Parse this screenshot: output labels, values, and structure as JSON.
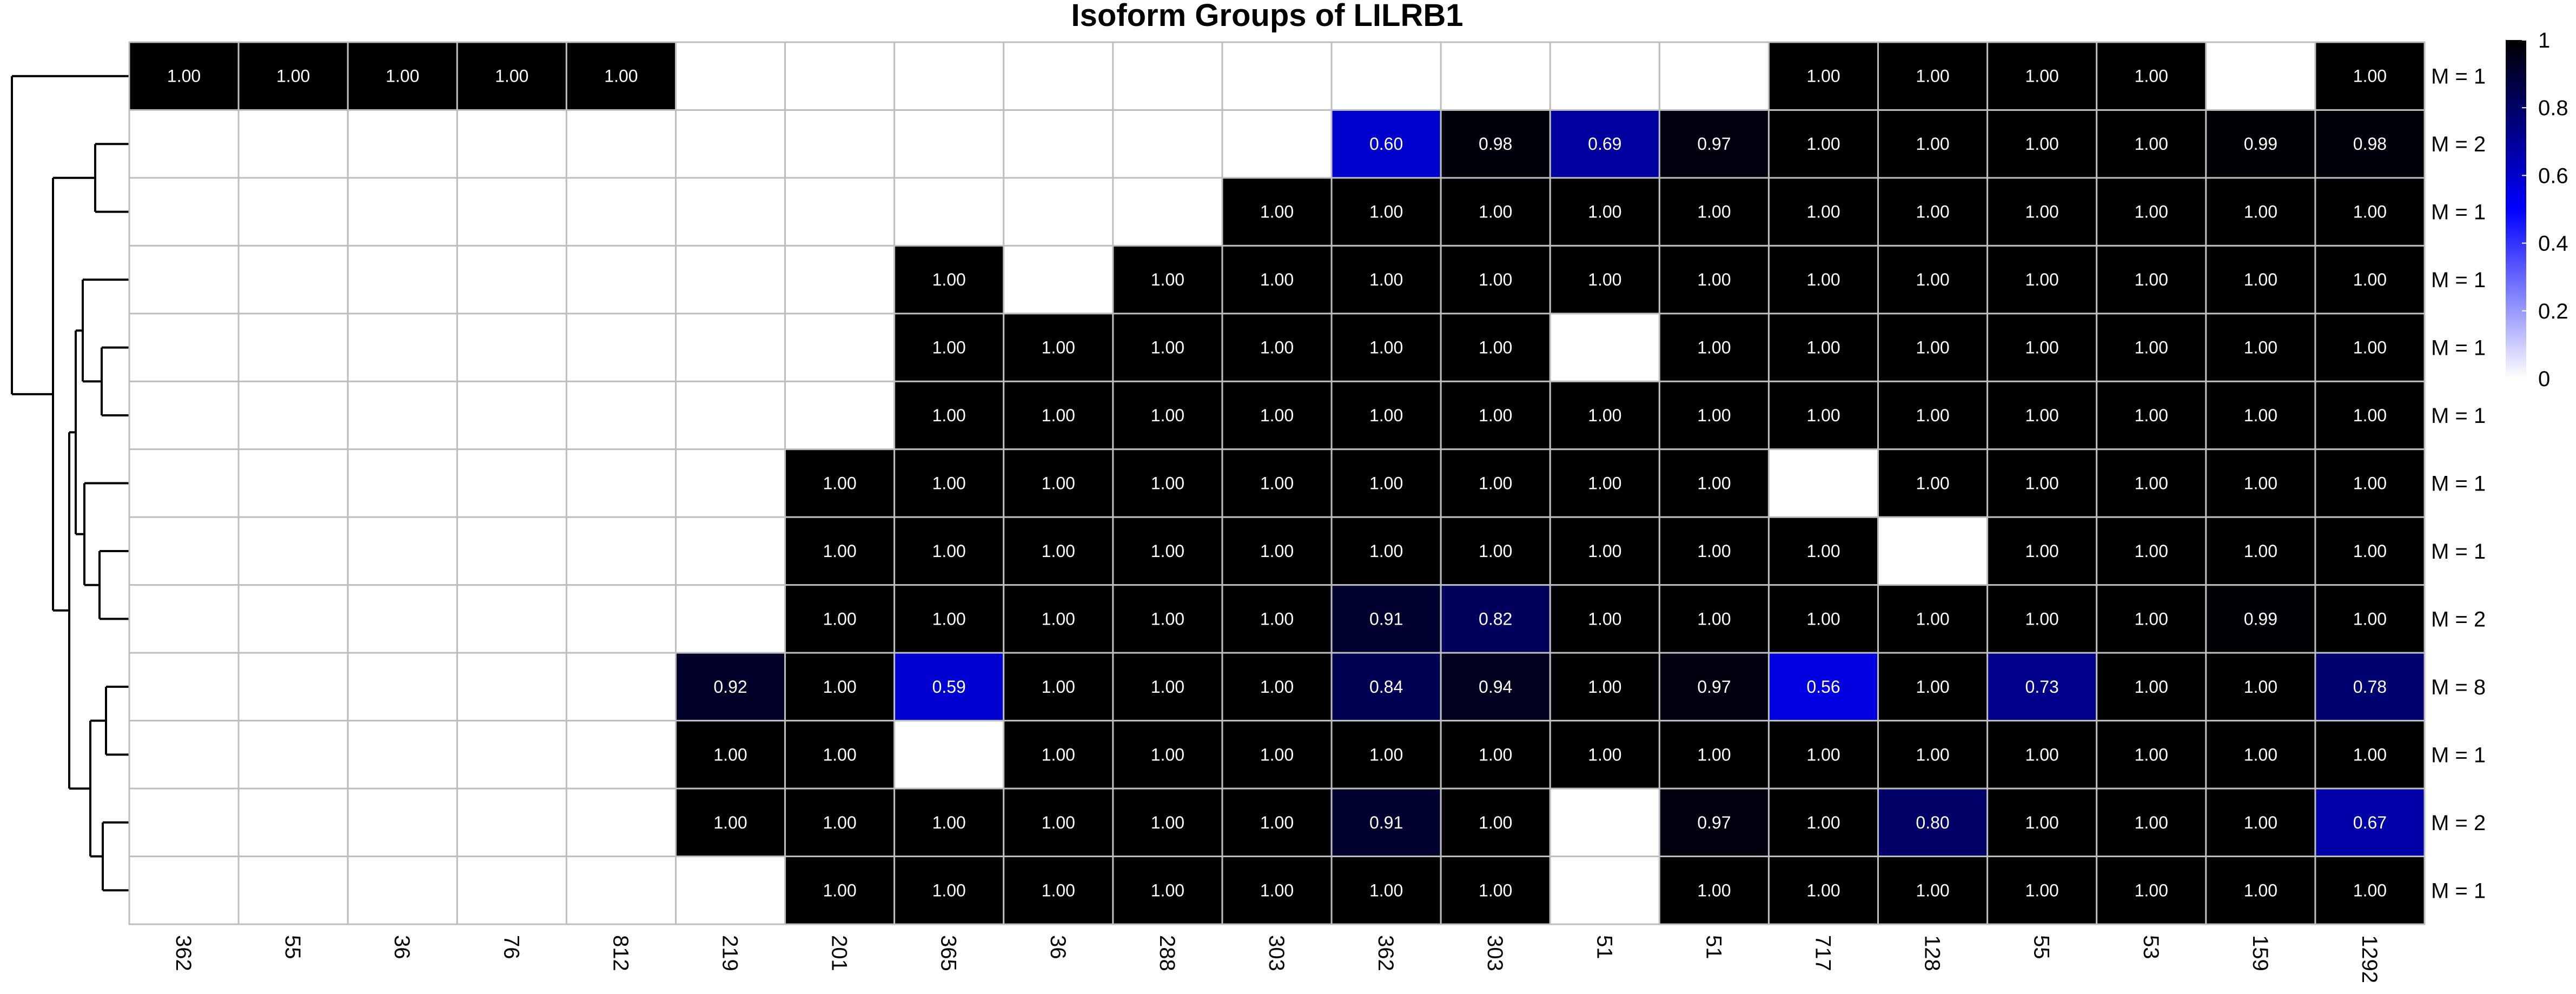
{
  "chart_data": {
    "type": "heatmap",
    "title": "Isoform Groups of LILRB1",
    "columns": [
      "362",
      "55",
      "36",
      "76",
      "812",
      "219",
      "201",
      "365",
      "36",
      "288",
      "303",
      "362",
      "303",
      "51",
      "51",
      "717",
      "128",
      "55",
      "53",
      "159",
      "1292"
    ],
    "row_labels": [
      "M = 1",
      "M = 2",
      "M = 1",
      "M = 1",
      "M = 1",
      "M = 1",
      "M = 1",
      "M = 1",
      "M = 2",
      "M = 8",
      "M = 1",
      "M = 2",
      "M = 1"
    ],
    "values": [
      [
        1.0,
        1.0,
        1.0,
        1.0,
        1.0,
        null,
        null,
        null,
        null,
        null,
        null,
        null,
        null,
        null,
        null,
        1.0,
        1.0,
        1.0,
        1.0,
        null,
        1.0
      ],
      [
        null,
        null,
        null,
        null,
        null,
        null,
        null,
        null,
        null,
        null,
        null,
        0.6,
        0.98,
        0.69,
        0.97,
        1.0,
        1.0,
        1.0,
        1.0,
        0.99,
        0.98
      ],
      [
        null,
        null,
        null,
        null,
        null,
        null,
        null,
        null,
        null,
        null,
        1.0,
        1.0,
        1.0,
        1.0,
        1.0,
        1.0,
        1.0,
        1.0,
        1.0,
        1.0,
        1.0
      ],
      [
        null,
        null,
        null,
        null,
        null,
        null,
        null,
        1.0,
        null,
        1.0,
        1.0,
        1.0,
        1.0,
        1.0,
        1.0,
        1.0,
        1.0,
        1.0,
        1.0,
        1.0,
        1.0
      ],
      [
        null,
        null,
        null,
        null,
        null,
        null,
        null,
        1.0,
        1.0,
        1.0,
        1.0,
        1.0,
        1.0,
        null,
        1.0,
        1.0,
        1.0,
        1.0,
        1.0,
        1.0,
        1.0
      ],
      [
        null,
        null,
        null,
        null,
        null,
        null,
        null,
        1.0,
        1.0,
        1.0,
        1.0,
        1.0,
        1.0,
        1.0,
        1.0,
        1.0,
        1.0,
        1.0,
        1.0,
        1.0,
        1.0
      ],
      [
        null,
        null,
        null,
        null,
        null,
        null,
        1.0,
        1.0,
        1.0,
        1.0,
        1.0,
        1.0,
        1.0,
        1.0,
        1.0,
        null,
        1.0,
        1.0,
        1.0,
        1.0,
        1.0
      ],
      [
        null,
        null,
        null,
        null,
        null,
        null,
        1.0,
        1.0,
        1.0,
        1.0,
        1.0,
        1.0,
        1.0,
        1.0,
        1.0,
        1.0,
        null,
        1.0,
        1.0,
        1.0,
        1.0
      ],
      [
        null,
        null,
        null,
        null,
        null,
        null,
        1.0,
        1.0,
        1.0,
        1.0,
        1.0,
        0.91,
        0.82,
        1.0,
        1.0,
        1.0,
        1.0,
        1.0,
        1.0,
        0.99,
        1.0
      ],
      [
        null,
        null,
        null,
        null,
        null,
        0.92,
        1.0,
        0.59,
        1.0,
        1.0,
        1.0,
        0.84,
        0.94,
        1.0,
        0.97,
        0.56,
        1.0,
        0.73,
        1.0,
        1.0,
        0.78
      ],
      [
        null,
        null,
        null,
        null,
        null,
        1.0,
        1.0,
        null,
        1.0,
        1.0,
        1.0,
        1.0,
        1.0,
        1.0,
        1.0,
        1.0,
        1.0,
        1.0,
        1.0,
        1.0,
        1.0
      ],
      [
        null,
        null,
        null,
        null,
        null,
        1.0,
        1.0,
        1.0,
        1.0,
        1.0,
        1.0,
        0.91,
        1.0,
        null,
        0.97,
        1.0,
        0.8,
        1.0,
        1.0,
        1.0,
        0.67
      ],
      [
        null,
        null,
        null,
        null,
        null,
        null,
        1.0,
        1.0,
        1.0,
        1.0,
        1.0,
        1.0,
        1.0,
        null,
        1.0,
        1.0,
        1.0,
        1.0,
        1.0,
        1.0,
        1.0
      ]
    ],
    "color_scale": {
      "min": 0,
      "max": 1,
      "ticks": [
        0,
        0.2,
        0.4,
        0.6,
        0.8,
        1
      ],
      "tick_labels": [
        "0",
        "0.2",
        "0.4",
        "0.6",
        "0.8",
        "1"
      ],
      "colors": [
        "#ffffff",
        "#0000ff",
        "#000000"
      ]
    },
    "row_dendrogram": true,
    "grid_color": "#bebebe",
    "legend_position": "right"
  }
}
